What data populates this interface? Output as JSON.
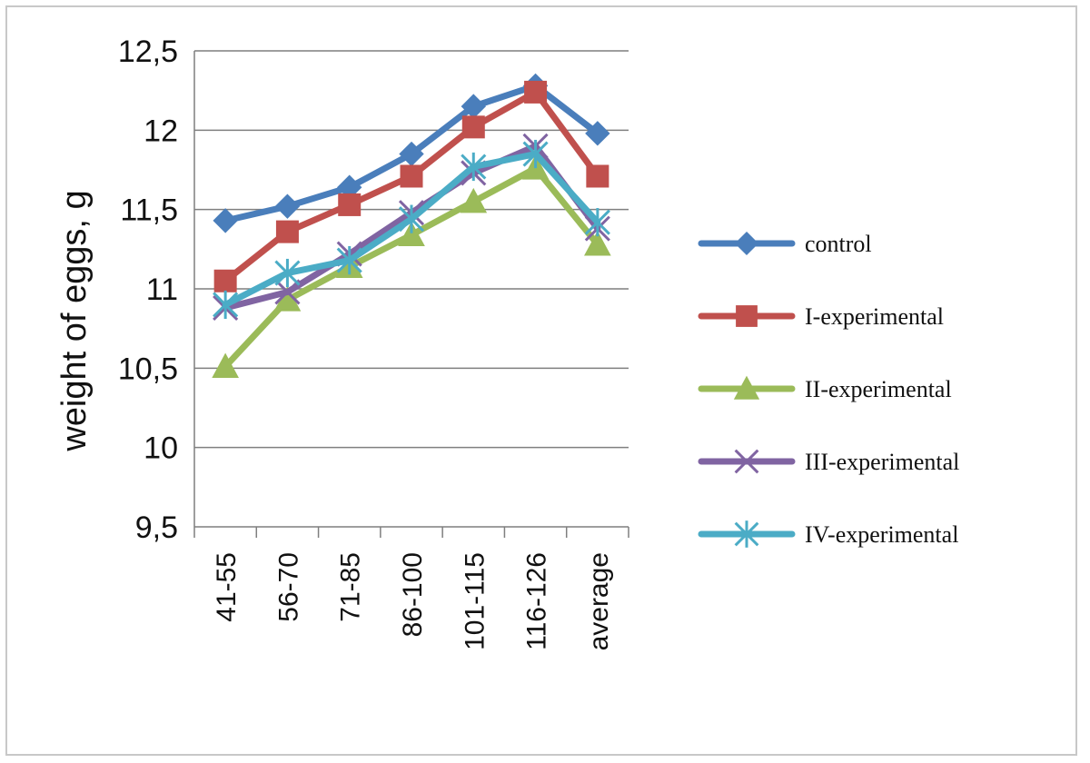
{
  "chart_data": {
    "type": "line",
    "title": "",
    "xlabel": "",
    "ylabel": "weight of eggs, g",
    "ylim": [
      9.5,
      12.5
    ],
    "yticks": [
      9.5,
      10,
      10.5,
      11,
      11.5,
      12,
      12.5
    ],
    "ytick_labels": [
      "9,5",
      "10",
      "10,5",
      "11",
      "11,5",
      "12",
      "12,5"
    ],
    "categories": [
      "41-55",
      "56-70",
      "71-85",
      "86-100",
      "101-115",
      "116-126",
      "average"
    ],
    "grid": true,
    "legend_position": "right",
    "series": [
      {
        "name": "control",
        "color": "#4a7ebb",
        "marker": "diamond",
        "values": [
          11.43,
          11.52,
          11.64,
          11.85,
          12.15,
          12.28,
          11.98
        ]
      },
      {
        "name": "I-experimental",
        "color": "#c0504d",
        "marker": "square",
        "values": [
          11.05,
          11.36,
          11.53,
          11.71,
          12.02,
          12.24,
          11.71
        ]
      },
      {
        "name": "II-experimental",
        "color": "#9bbb59",
        "marker": "triangle",
        "values": [
          10.51,
          10.93,
          11.14,
          11.34,
          11.55,
          11.76,
          11.28
        ]
      },
      {
        "name": "III-experimental",
        "color": "#8064a2",
        "marker": "x",
        "values": [
          10.88,
          10.98,
          11.22,
          11.48,
          11.73,
          11.9,
          11.38
        ]
      },
      {
        "name": "IV-experimental",
        "color": "#4bacc6",
        "marker": "star",
        "values": [
          10.9,
          11.1,
          11.18,
          11.44,
          11.77,
          11.85,
          11.42
        ]
      }
    ]
  }
}
